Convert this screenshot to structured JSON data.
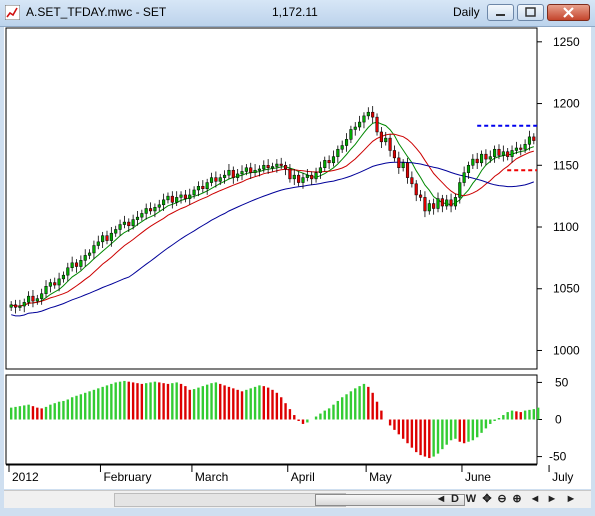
{
  "window": {
    "title": "A.SET_TFDAY.mwc - SET",
    "last_price": "1,172.11",
    "interval": "Daily",
    "minimize_icon": "minimize-icon",
    "maximize_icon": "maximize-icon",
    "close_icon": "close-icon"
  },
  "scrollbar": {
    "buttons": [
      {
        "name": "scroll-left-button",
        "label": "◄"
      },
      {
        "name": "scroll-right-button",
        "label": "►"
      },
      {
        "name": "daily-button",
        "label": "D"
      },
      {
        "name": "weekly-button",
        "label": "W"
      },
      {
        "name": "crosshair-button",
        "label": "✥"
      },
      {
        "name": "zoom-out-button",
        "label": "⊖"
      },
      {
        "name": "zoom-in-button",
        "label": "⊕"
      },
      {
        "name": "scroll-start-button",
        "label": "◄"
      },
      {
        "name": "scroll-end-button",
        "label": "►"
      },
      {
        "name": "scroll-end2-button",
        "label": "►"
      }
    ]
  },
  "chart_data": [
    {
      "type": "candlestick",
      "ylim": [
        985,
        1262
      ],
      "yticks": [
        1000,
        1050,
        1100,
        1150,
        1200,
        1250
      ],
      "x_months": [
        {
          "label": "2012",
          "index": 0
        },
        {
          "label": "February",
          "index": 21
        },
        {
          "label": "March",
          "index": 42
        },
        {
          "label": "April",
          "index": 64
        },
        {
          "label": "May",
          "index": 82
        },
        {
          "label": "June",
          "index": 104
        },
        {
          "label": "July",
          "index": 124
        }
      ],
      "close_start": 1037,
      "series": [
        {
          "name": "fast-ma",
          "color": "#008800"
        },
        {
          "name": "mid-ma",
          "color": "#cc0000"
        },
        {
          "name": "slow-ma",
          "color": "#000099"
        }
      ],
      "candle_colors": {
        "up": "#00aa00",
        "down": "#dd0000"
      },
      "resistance": {
        "value": 1182,
        "color": "#0000ee"
      },
      "support": {
        "value": 1146,
        "color": "#ee0000"
      },
      "closes_delta": [
        0,
        -2,
        1,
        3,
        5,
        -4,
        2,
        4,
        6,
        3,
        -2,
        5,
        3,
        6,
        4,
        -3,
        5,
        4,
        2,
        6,
        3,
        5,
        -4,
        6,
        3,
        4,
        2,
        -3,
        5,
        2,
        3,
        4,
        -2,
        3,
        2,
        4,
        3,
        -5,
        4,
        2,
        -3,
        3,
        4,
        3,
        -2,
        5,
        4,
        -3,
        3,
        2,
        4,
        -6,
        3,
        2,
        3,
        -4,
        2,
        1,
        3,
        -2,
        1,
        2,
        -1,
        -3,
        -8,
        3,
        -6,
        4,
        2,
        -3,
        5,
        4,
        6,
        -2,
        5,
        6,
        3,
        5,
        8,
        2,
        4,
        5,
        3,
        -4,
        -12,
        -8,
        3,
        -10,
        -6,
        -8,
        4,
        -12,
        -5,
        -9,
        -2,
        -11,
        6,
        -4,
        8,
        -6,
        5,
        -5,
        7,
        12,
        8,
        6,
        5,
        -3,
        7,
        -4,
        2,
        6,
        -5,
        3,
        -4,
        5,
        2,
        -1,
        4,
        6,
        -3
      ]
    },
    {
      "type": "bar",
      "ylim": [
        -60,
        60
      ],
      "yticks": [
        50,
        0,
        -50
      ],
      "colors": {
        "up": "#33cc33",
        "down": "#dd0000"
      },
      "values": [
        16,
        17,
        18,
        19,
        20,
        18,
        16,
        15,
        17,
        20,
        22,
        24,
        25,
        27,
        30,
        32,
        34,
        36,
        38,
        40,
        42,
        44,
        46,
        48,
        50,
        51,
        52,
        51,
        50,
        49,
        48,
        49,
        50,
        51,
        50,
        49,
        48,
        49,
        50,
        48,
        45,
        40,
        41,
        43,
        45,
        47,
        49,
        50,
        48,
        46,
        44,
        42,
        40,
        38,
        40,
        42,
        44,
        46,
        45,
        43,
        40,
        36,
        30,
        22,
        14,
        6,
        -2,
        -6,
        -4,
        0,
        4,
        8,
        12,
        15,
        20,
        25,
        30,
        34,
        38,
        42,
        45,
        48,
        44,
        36,
        24,
        12,
        0,
        -8,
        -14,
        -20,
        -26,
        -32,
        -38,
        -44,
        -48,
        -50,
        -52,
        -50,
        -46,
        -40,
        -34,
        -28,
        -26,
        -30,
        -32,
        -30,
        -28,
        -24,
        -18,
        -12,
        -6,
        -2,
        2,
        6,
        10,
        12,
        11,
        10,
        12,
        13,
        14,
        16
      ]
    }
  ]
}
